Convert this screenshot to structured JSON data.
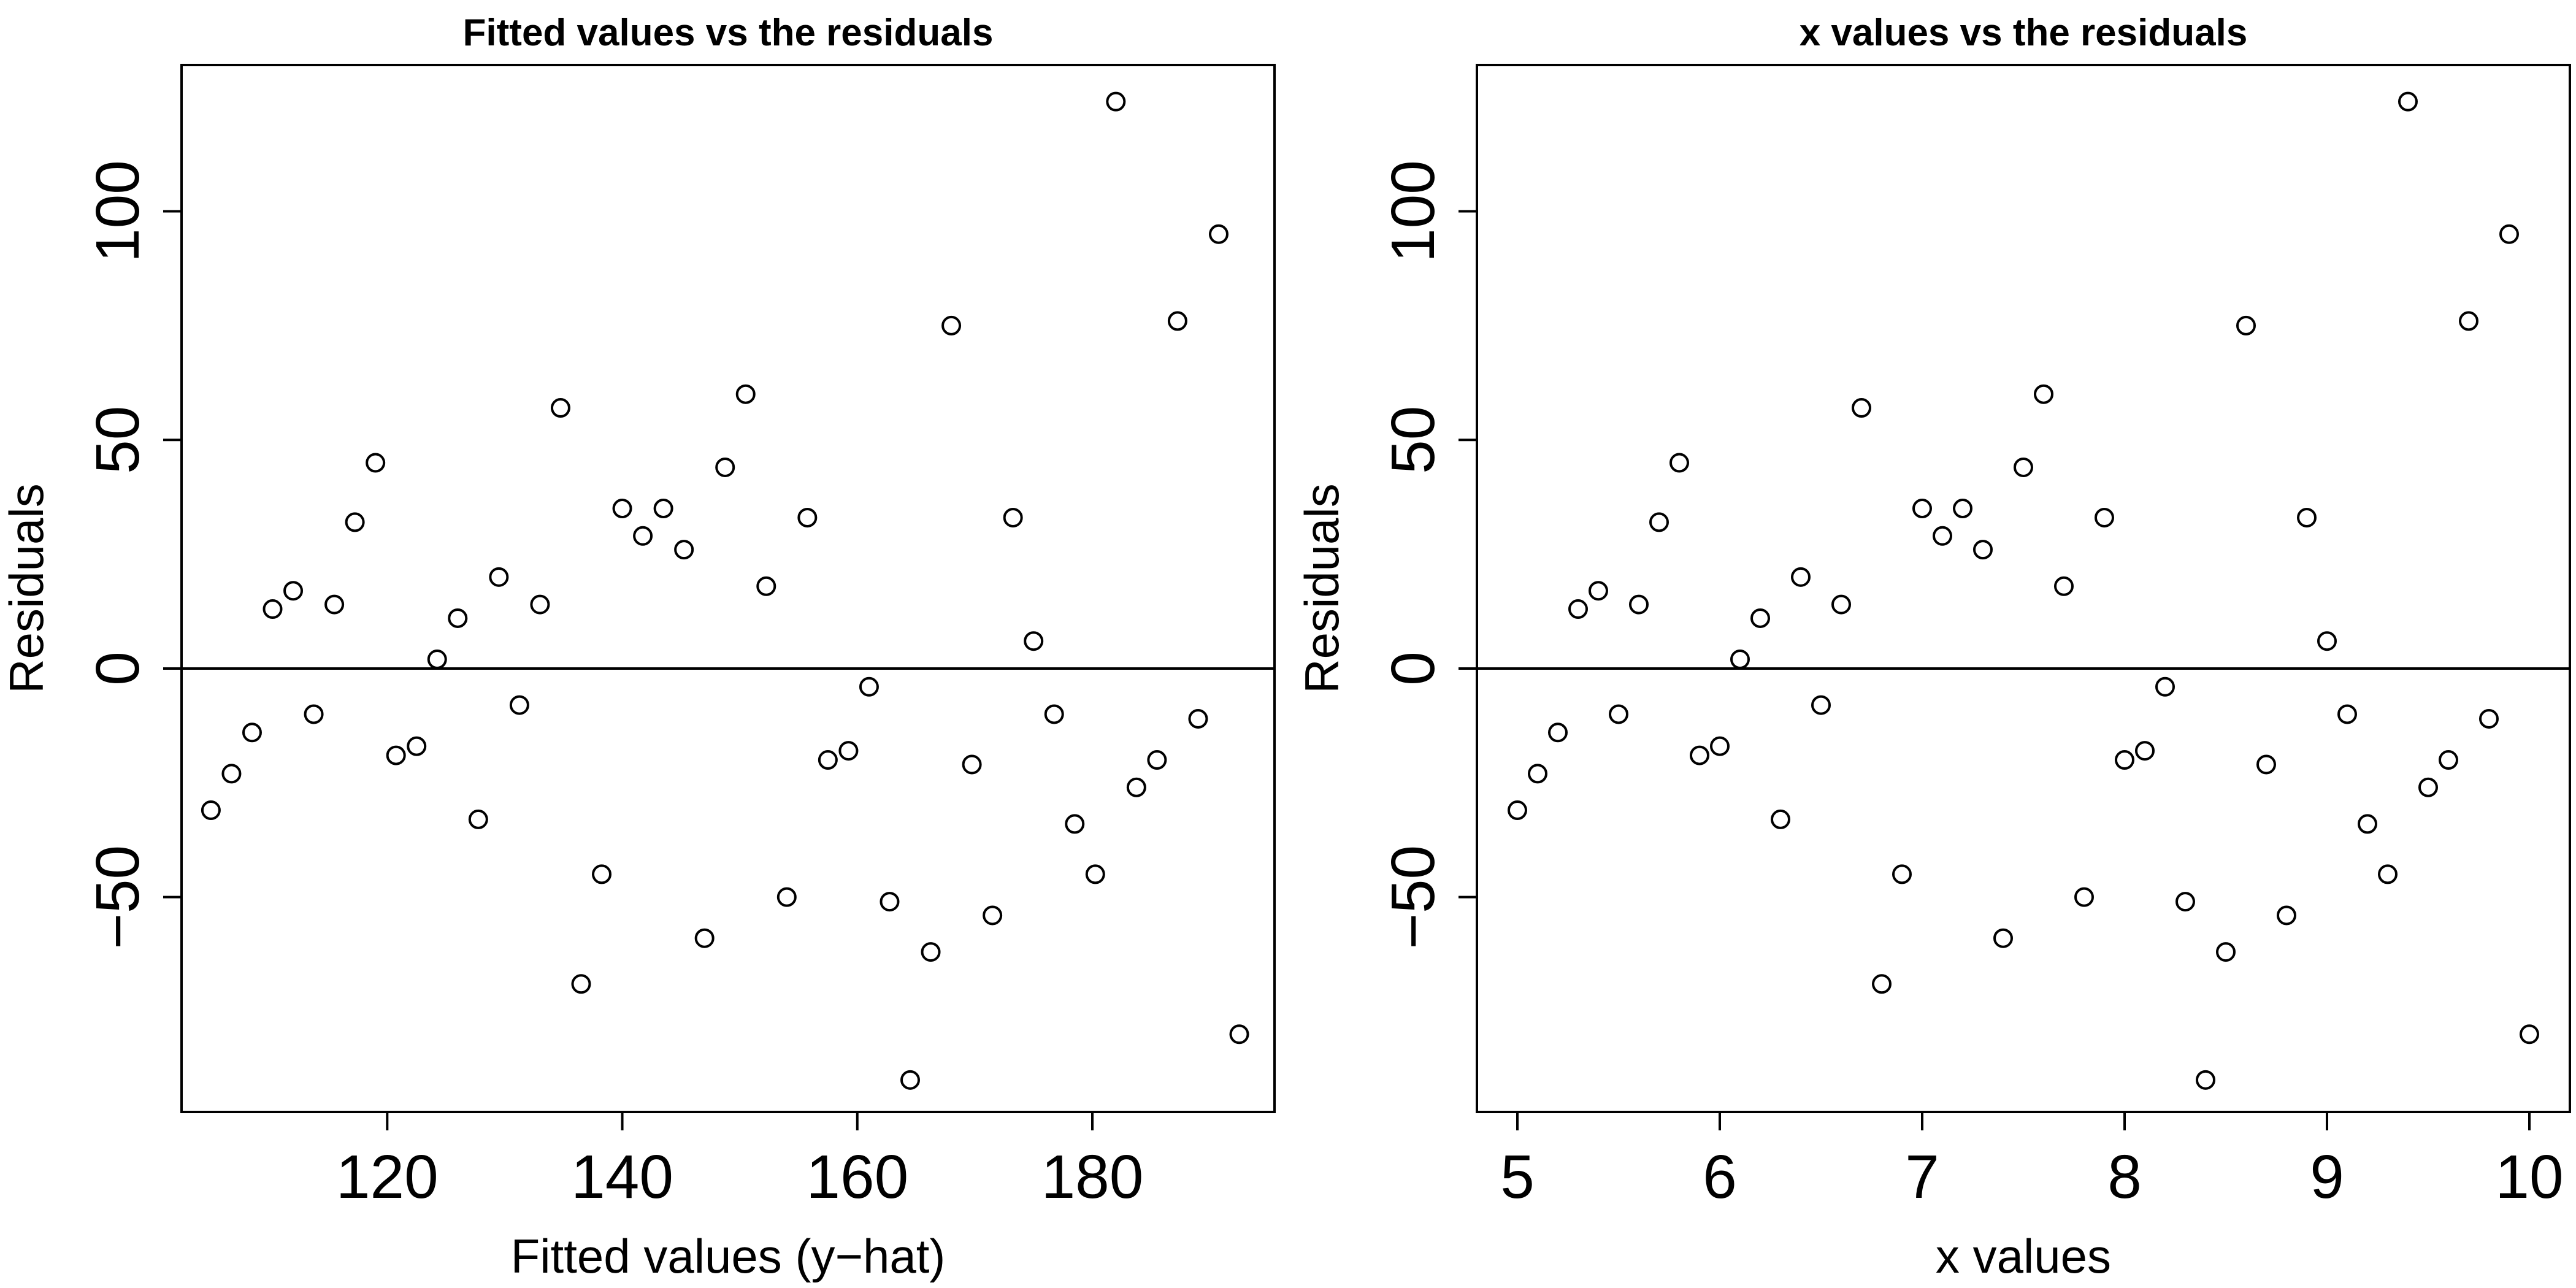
{
  "chart_data": [
    {
      "type": "scatter",
      "title": "Fitted values vs the residuals",
      "xlabel": "Fitted values (y−hat)",
      "ylabel": "Residuals",
      "xlim": [
        102.5,
        195.5
      ],
      "ylim": [
        -97,
        132
      ],
      "xticks": [
        120,
        140,
        160,
        180
      ],
      "xtick_labels": [
        "120",
        "140",
        "160",
        "180"
      ],
      "yticks": [
        -50,
        0,
        50,
        100
      ],
      "ytick_labels": [
        "−50",
        "0",
        "50",
        "100"
      ],
      "reference_line_y": 0,
      "grid": false,
      "x": [
        105.0,
        106.75,
        108.5,
        110.25,
        112.0,
        113.75,
        115.5,
        117.25,
        119.0,
        120.75,
        122.5,
        124.25,
        126.0,
        127.75,
        129.5,
        131.25,
        133.0,
        134.75,
        136.5,
        138.25,
        140.0,
        141.75,
        143.5,
        145.25,
        147.0,
        148.75,
        150.5,
        152.25,
        154.0,
        155.75,
        157.5,
        159.25,
        161.0,
        162.75,
        164.5,
        166.25,
        168.0,
        169.75,
        171.5,
        173.25,
        175.0,
        176.75,
        178.5,
        180.25,
        182.0,
        183.75,
        185.5,
        187.25,
        189.0,
        190.75,
        192.5
      ],
      "y": [
        -31,
        -23,
        -14,
        13,
        17,
        -10,
        14,
        32,
        45,
        -19,
        -17,
        2,
        11,
        -33,
        20,
        -8,
        14,
        57,
        -69,
        -45,
        35,
        29,
        35,
        26,
        -59,
        44,
        60,
        18,
        -50,
        33,
        -20,
        -18,
        -4,
        -51,
        -90,
        -62,
        75,
        -21,
        -54,
        33,
        6,
        -10,
        -34,
        -45,
        124,
        -26,
        -20,
        76,
        -11,
        95,
        -80
      ]
    },
    {
      "type": "scatter",
      "title": "x values vs the residuals",
      "xlabel": "x values",
      "ylabel": "Residuals",
      "xlim": [
        4.8,
        10.2
      ],
      "ylim": [
        -97,
        132
      ],
      "xticks": [
        5,
        6,
        7,
        8,
        9,
        10
      ],
      "xtick_labels": [
        "5",
        "6",
        "7",
        "8",
        "9",
        "10"
      ],
      "yticks": [
        -50,
        0,
        50,
        100
      ],
      "ytick_labels": [
        "−50",
        "0",
        "50",
        "100"
      ],
      "reference_line_y": 0,
      "grid": false,
      "x": [
        5.0,
        5.1,
        5.2,
        5.3,
        5.4,
        5.5,
        5.6,
        5.7,
        5.8,
        5.9,
        6.0,
        6.1,
        6.2,
        6.3,
        6.4,
        6.5,
        6.6,
        6.7,
        6.8,
        6.9,
        7.0,
        7.1,
        7.2,
        7.3,
        7.4,
        7.5,
        7.6,
        7.7,
        7.8,
        7.9,
        8.0,
        8.1,
        8.2,
        8.3,
        8.4,
        8.5,
        8.6,
        8.7,
        8.8,
        8.9,
        9.0,
        9.1,
        9.2,
        9.3,
        9.4,
        9.5,
        9.6,
        9.7,
        9.8,
        9.9,
        10.0
      ],
      "y": [
        -31,
        -23,
        -14,
        13,
        17,
        -10,
        14,
        32,
        45,
        -19,
        -17,
        2,
        11,
        -33,
        20,
        -8,
        14,
        57,
        -69,
        -45,
        35,
        29,
        35,
        26,
        -59,
        44,
        60,
        18,
        -50,
        33,
        -20,
        -18,
        -4,
        -51,
        -90,
        -62,
        75,
        -21,
        -54,
        33,
        6,
        -10,
        -34,
        -45,
        124,
        -26,
        -20,
        76,
        -11,
        95,
        -80
      ]
    }
  ]
}
